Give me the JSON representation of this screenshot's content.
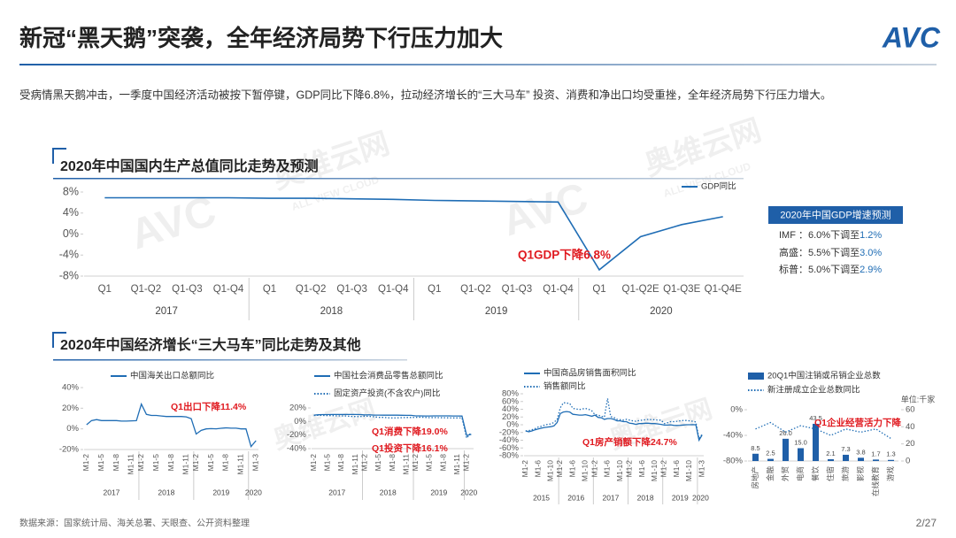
{
  "header": {
    "title": "新冠“黑天鹅”突袭，全年经济局势下行压力加大",
    "logo": "AVC",
    "summary": "受病情黑天鹅冲击，一季度中国经济活动被按下暂停键，GDP同比下降6.8%，拉动经济增长的“三大马车” 投资、消费和净出口均受重挫，全年经济局势下行压力增大。"
  },
  "watermark": {
    "logo": "AVC",
    "name": "奥维云网",
    "en": "ALL VIEW CLOUD"
  },
  "sections": [
    "2020年中国国内生产总值同比走势及预测",
    "2020年中国经济增长“三大马车”同比走势及其他"
  ],
  "forecast": {
    "title": "2020年中国GDP增速预测",
    "rows": [
      {
        "label": "IMF ：6.0%下调至",
        "value": "1.2%"
      },
      {
        "label": "高盛：5.5%下调至",
        "value": "3.0%"
      },
      {
        "label": "标普：5.0%下调至",
        "value": "2.9%"
      }
    ]
  },
  "chart_data": [
    {
      "type": "line",
      "groups": [
        {
          "name": "2017",
          "categories": [
            "Q1",
            "Q1-Q2",
            "Q1-Q3",
            "Q1-Q4"
          ]
        },
        {
          "name": "2018",
          "categories": [
            "Q1",
            "Q1-Q2",
            "Q1-Q3",
            "Q1-Q4"
          ]
        },
        {
          "name": "2019",
          "categories": [
            "Q1",
            "Q1-Q2",
            "Q1-Q3",
            "Q1-Q4"
          ]
        },
        {
          "name": "2020",
          "categories": [
            "Q1",
            "Q1-Q2E",
            "Q1-Q3E",
            "Q1-Q4E"
          ]
        }
      ],
      "series": [
        {
          "name": "GDP同比",
          "color": "#1f6db5",
          "style": "solid",
          "values": [
            6.9,
            6.9,
            6.9,
            6.9,
            6.8,
            6.8,
            6.7,
            6.6,
            6.4,
            6.3,
            6.2,
            6.1,
            -6.8,
            -0.5,
            1.8,
            3.3
          ]
        }
      ],
      "ylim": [
        -8,
        8
      ],
      "yticks": [
        {
          "value": 8,
          "label": "8%"
        },
        {
          "value": 4,
          "label": "4%"
        },
        {
          "value": 0,
          "label": "0%"
        },
        {
          "value": -4,
          "label": "-4%"
        },
        {
          "value": -8,
          "label": "-8%"
        }
      ],
      "annotations": [
        "Q1GDP下降6.8%"
      ]
    },
    {
      "type": "line",
      "groups": [
        {
          "name": "2017",
          "categories": [
            "M1-2",
            null,
            null,
            "M1-5",
            null,
            null,
            "M1-8",
            null,
            null,
            "M1-11",
            null
          ]
        },
        {
          "name": "2018",
          "categories": [
            "M1-2",
            null,
            null,
            "M1-5",
            null,
            null,
            "M1-8",
            null,
            null,
            "M1-11",
            null
          ]
        },
        {
          "name": "2019",
          "categories": [
            "M1-2",
            null,
            null,
            "M1-5",
            null,
            null,
            "M1-8",
            null,
            null,
            "M1-11",
            null
          ]
        },
        {
          "name": "2020",
          "categories": [
            null,
            "M1-3"
          ]
        }
      ],
      "series": [
        {
          "name": "中国海关出口总额同比",
          "color": "#1f6db5",
          "style": "solid",
          "values": [
            4,
            8,
            9,
            8,
            8,
            8,
            8,
            7.5,
            7.5,
            7.8,
            7.9,
            24,
            14,
            13,
            13,
            12.5,
            12,
            12,
            12,
            12,
            11.6,
            9.9,
            -5,
            -1.5,
            0,
            0.2,
            0.1,
            0.6,
            1,
            0.7,
            0.7,
            0,
            0,
            -17.2,
            -11.4
          ]
        }
      ],
      "ylim": [
        -20,
        40
      ],
      "yticks": [
        {
          "value": 40,
          "label": "40%"
        },
        {
          "value": 20,
          "label": "20%"
        },
        {
          "value": 0,
          "label": "0%"
        },
        {
          "value": -20,
          "label": "-20%"
        }
      ],
      "annotations": [
        "Q1出口下降11.4%"
      ]
    },
    {
      "type": "line",
      "groups": [
        {
          "name": "2017",
          "categories": [
            "M1-2",
            null,
            null,
            "M1-5",
            null,
            null,
            "M1-8",
            null,
            null,
            "M1-11",
            null
          ]
        },
        {
          "name": "2018",
          "categories": [
            "M1-2",
            null,
            null,
            "M1-5",
            null,
            null,
            "M1-8",
            null,
            null,
            "M1-11",
            null
          ]
        },
        {
          "name": "2019",
          "categories": [
            "M1-2",
            null,
            null,
            "M1-5",
            null,
            null,
            "M1-8",
            null,
            null,
            "M1-11",
            null
          ]
        },
        {
          "name": "2020",
          "categories": [
            "M1-2",
            null
          ]
        }
      ],
      "series": [
        {
          "name": "中国社会消费品零售总额同比",
          "color": "#1f6db5",
          "style": "solid",
          "values": [
            9.5,
            10,
            10.2,
            10.2,
            10.3,
            10.4,
            10.4,
            10.4,
            10.4,
            10.3,
            10.2,
            9.7,
            9.8,
            9.5,
            9.4,
            9.3,
            9.3,
            9.3,
            9.3,
            9.2,
            9.1,
            9.0,
            8.2,
            8.3,
            8.1,
            8.1,
            8.2,
            8.3,
            8.2,
            8.2,
            8.1,
            8.1,
            8.0,
            -20.5,
            -19.0
          ]
        },
        {
          "name": "固定资产投资(不含农户)同比",
          "color": "#1f6db5",
          "style": "dotted",
          "values": [
            8.9,
            9.2,
            8.9,
            8.6,
            8.6,
            8.3,
            8.2,
            8.1,
            7.5,
            7.3,
            7.2,
            7.9,
            7.5,
            7.0,
            6.1,
            6.0,
            5.5,
            5.3,
            5.4,
            5.7,
            5.9,
            5.9,
            6.1,
            6.3,
            6.1,
            5.6,
            5.8,
            5.7,
            5.5,
            5.4,
            5.2,
            5.2,
            5.4,
            -24.5,
            -16.1
          ]
        }
      ],
      "ylim": [
        -40,
        20
      ],
      "yticks": [
        {
          "value": 20,
          "label": "20%"
        },
        {
          "value": 0,
          "label": "0%"
        },
        {
          "value": -20,
          "label": "-20%"
        },
        {
          "value": -40,
          "label": "-40%"
        }
      ],
      "annotations": [
        "Q1消费下降19.0%",
        "Q1投资下降16.1%"
      ]
    },
    {
      "type": "line",
      "groups": [
        {
          "name": "2015",
          "categories": [
            "M1-2",
            null,
            null,
            null,
            "M1-6",
            null,
            null,
            null,
            "M1-10",
            null,
            null
          ]
        },
        {
          "name": "2016",
          "categories": [
            "M1-2",
            null,
            null,
            null,
            "M1-6",
            null,
            null,
            null,
            "M1-10",
            null,
            null
          ]
        },
        {
          "name": "2017",
          "categories": [
            "M1-2",
            null,
            null,
            null,
            "M1-6",
            null,
            null,
            null,
            "M1-10",
            null,
            null
          ]
        },
        {
          "name": "2018",
          "categories": [
            "M1-2",
            null,
            null,
            null,
            "M1-6",
            null,
            null,
            null,
            "M1-10",
            null,
            null
          ]
        },
        {
          "name": "2019",
          "categories": [
            "M1-2",
            null,
            null,
            null,
            "M1-6",
            null,
            null,
            null,
            "M1-10",
            null,
            null
          ]
        },
        {
          "name": "2020",
          "categories": [
            null,
            "M1-3"
          ]
        }
      ],
      "series": [
        {
          "name": "中国商品房销售面积同比",
          "color": "#1f6db5",
          "style": "solid",
          "values": [
            -16,
            -18,
            -16,
            -13,
            -11,
            -9,
            -7,
            -6,
            -5,
            -3,
            6,
            29,
            33,
            34,
            33,
            27,
            26,
            25,
            25,
            26,
            24,
            22,
            25,
            19,
            18,
            14,
            16,
            16,
            14,
            10,
            10,
            8,
            8,
            4,
            3,
            1,
            3,
            3,
            4,
            4,
            3,
            3,
            2,
            1,
            -1,
            -1,
            -0.3,
            -1.6,
            -1.8,
            -1.3,
            -0.6,
            -0.1,
            0,
            0.2,
            0,
            -39.9,
            -26.3
          ]
        },
        {
          "name": "销售额同比",
          "color": "#1f6db5",
          "style": "dotted",
          "values": [
            -16,
            -15,
            -13,
            -10,
            -6,
            -4,
            -1,
            1,
            2,
            6,
            14,
            44,
            57,
            56,
            55,
            42,
            41,
            39,
            41,
            42,
            40,
            36,
            26,
            25,
            22,
            20,
            68,
            21,
            19,
            14,
            13,
            12,
            14,
            12,
            10,
            9,
            11,
            12,
            13,
            14,
            13,
            13,
            12,
            12,
            3,
            5,
            8,
            8,
            9,
            10,
            11,
            11,
            10,
            9,
            7,
            -35.9,
            -24.7
          ]
        }
      ],
      "ylim": [
        -80,
        80
      ],
      "yticks": [
        {
          "value": 80,
          "label": "80%"
        },
        {
          "value": 60,
          "label": "60%"
        },
        {
          "value": 40,
          "label": "40%"
        },
        {
          "value": 20,
          "label": "20%"
        },
        {
          "value": 0,
          "label": "0%"
        },
        {
          "value": -20,
          "label": "-20%"
        },
        {
          "value": -40,
          "label": "-40%"
        },
        {
          "value": -60,
          "label": "-60%"
        },
        {
          "value": -80,
          "label": "-80%"
        }
      ],
      "annotations": [
        "Q1房产销额下降24.7%"
      ]
    },
    {
      "type": "bar",
      "categories": [
        "房地产",
        "金融",
        "外贸",
        "电商",
        "餐饮",
        "住宿",
        "旅游",
        "影视",
        "在线教育",
        "游戏"
      ],
      "series": [
        {
          "name": "20Q1中国注销或吊销企业总数",
          "color": "#1f5fa8",
          "axis": "y2",
          "values": [
            8.5,
            2.5,
            26.0,
            15.0,
            43.5,
            2.1,
            7.3,
            3.8,
            1.7,
            1.3
          ],
          "value_labels": [
            "8.5",
            "2.5",
            "26.0",
            "15.0",
            "43.5",
            "2.1",
            "7.3",
            "3.8",
            "1.7",
            "1.3"
          ]
        },
        {
          "name": "新注册成立企业总数同比",
          "color": "#1f6db5",
          "style": "dotted",
          "values": [
            -30,
            -20,
            -35,
            -25,
            -30,
            -40,
            -30,
            -35,
            -30,
            -45
          ]
        }
      ],
      "ylim": [
        -80,
        0
      ],
      "yticks": [
        {
          "value": 0,
          "label": "0%"
        },
        {
          "value": -40,
          "label": "-40%"
        },
        {
          "value": -80,
          "label": "-80%"
        }
      ],
      "y2lim": [
        0,
        60
      ],
      "y2ticks": [
        0,
        20,
        40,
        60
      ],
      "y2label": "单位:千家",
      "annotations": [
        "Q1企业经营活力下降"
      ]
    }
  ],
  "footer": {
    "source": "数据来源：国家统计局、海关总署、天眼查、公开资料整理",
    "page": "2/27"
  }
}
